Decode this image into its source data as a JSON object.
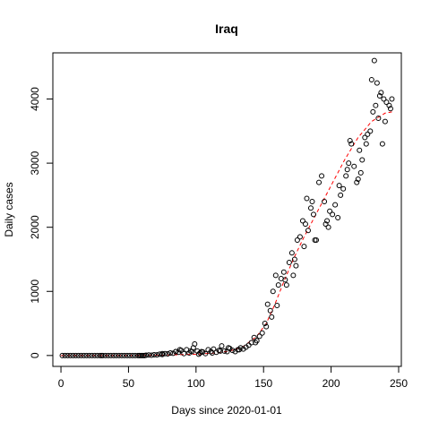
{
  "chart_data": {
    "type": "scatter",
    "title": "Iraq",
    "xlabel": "Days since 2020-01-01",
    "ylabel": "Daily cases",
    "xlim": [
      -6,
      252
    ],
    "ylim": [
      -170,
      4720
    ],
    "xticks": [
      0,
      50,
      100,
      150,
      200,
      250
    ],
    "yticks": [
      0,
      1000,
      2000,
      3000,
      4000
    ],
    "grid": false,
    "legend": "none",
    "colors": {
      "points": "#000000",
      "fit": "#ff0000"
    },
    "series": [
      {
        "type": "scatter",
        "marker": "open-circle",
        "x": [
          1,
          3,
          5,
          7,
          9,
          11,
          13,
          15,
          17,
          19,
          21,
          23,
          25,
          27,
          29,
          31,
          33,
          35,
          37,
          39,
          41,
          43,
          45,
          47,
          49,
          51,
          53,
          55,
          57,
          59,
          61,
          63,
          65,
          67,
          69,
          71,
          73,
          75,
          77,
          79,
          81,
          83,
          85,
          87,
          89,
          91,
          93,
          95,
          97,
          99,
          101,
          103,
          105,
          107,
          109,
          111,
          113,
          115,
          117,
          119,
          121,
          123,
          125,
          127,
          129,
          131,
          133,
          135,
          137,
          139,
          141,
          143,
          145,
          147,
          149,
          151,
          153,
          155,
          157,
          159,
          161,
          163,
          165,
          167,
          169,
          171,
          173,
          175,
          177,
          179,
          181,
          183,
          185,
          187,
          189,
          191,
          193,
          195,
          197,
          199,
          201,
          203,
          205,
          207,
          209,
          211,
          213,
          215,
          217,
          219,
          221,
          223,
          225,
          227,
          229,
          231,
          233,
          235,
          237,
          239,
          241,
          243,
          245
        ],
        "y": [
          0,
          0,
          0,
          0,
          0,
          0,
          0,
          0,
          0,
          0,
          0,
          0,
          0,
          0,
          0,
          0,
          0,
          0,
          0,
          0,
          0,
          0,
          0,
          0,
          0,
          0,
          0,
          0,
          0,
          0,
          0,
          5,
          8,
          5,
          12,
          10,
          20,
          15,
          30,
          25,
          40,
          35,
          60,
          50,
          80,
          30,
          90,
          40,
          60,
          180,
          70,
          40,
          55,
          30,
          90,
          60,
          100,
          50,
          80,
          150,
          70,
          60,
          110,
          80,
          60,
          90,
          120,
          100,
          130,
          160,
          200,
          280,
          230,
          300,
          350,
          500,
          800,
          700,
          1000,
          1250,
          1100,
          1200,
          1300,
          1100,
          1450,
          1600,
          1500,
          1800,
          1850,
          2100,
          2050,
          1950,
          2300,
          2200,
          1800,
          2700,
          2800,
          2400,
          2100,
          2250,
          2200,
          2350,
          2150,
          2500,
          2600,
          2800,
          3000,
          3300,
          2950,
          2700,
          3200,
          3050,
          3400,
          3450,
          3500,
          3800,
          3900,
          3700,
          4100,
          4000,
          3950,
          3900,
          4000
        ],
        "x_extra": [
          30,
          58,
          60,
          62,
          75,
          85,
          88,
          96,
          98,
          102,
          104,
          112,
          118,
          124,
          132,
          144,
          152,
          156,
          160,
          166,
          172,
          174,
          180,
          182,
          186,
          188,
          196,
          198,
          206,
          212,
          214,
          220,
          222,
          226,
          230,
          232,
          234,
          236,
          238,
          240,
          244
        ],
        "y_extra": [
          0,
          0,
          0,
          0,
          30,
          60,
          90,
          70,
          120,
          20,
          60,
          40,
          70,
          120,
          90,
          200,
          450,
          600,
          780,
          1180,
          1250,
          1400,
          1700,
          2450,
          2400,
          1800,
          2050,
          2000,
          2650,
          2900,
          3350,
          2750,
          2850,
          3300,
          4300,
          4600,
          4250,
          4050,
          3300,
          3650,
          3850
        ]
      },
      {
        "type": "line",
        "style": "dashed",
        "x": [
          0,
          25,
          50,
          75,
          100,
          115,
          125,
          135,
          145,
          152,
          158,
          165,
          172,
          180,
          190,
          200,
          210,
          220,
          230,
          240,
          245
        ],
        "y": [
          0,
          0,
          0,
          5,
          20,
          40,
          70,
          140,
          300,
          500,
          780,
          1150,
          1500,
          1850,
          2250,
          2650,
          3050,
          3400,
          3650,
          3780,
          3800
        ]
      }
    ]
  }
}
